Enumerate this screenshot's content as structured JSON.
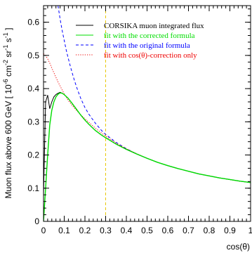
{
  "chart_data": {
    "type": "line",
    "xlabel": "cos(θ)",
    "ylabel_main": "Muon flux above 600 GeV [ 10",
    "ylabel_units": [
      {
        "t": "-6",
        "sup": true
      },
      {
        "t": " cm",
        "sup": false
      },
      {
        "t": "-2",
        "sup": true
      },
      {
        "t": " sr",
        "sup": false
      },
      {
        "t": "-1",
        "sup": true
      },
      {
        "t": " s",
        "sup": false
      },
      {
        "t": "-1",
        "sup": true
      },
      {
        "t": " ]",
        "sup": false
      }
    ],
    "xlim": [
      0,
      1
    ],
    "ylim": [
      0,
      0.65
    ],
    "xticks": [
      0,
      0.1,
      0.2,
      0.3,
      0.4,
      0.5,
      0.6,
      0.7,
      0.8,
      0.9,
      1
    ],
    "xtick_labels": [
      "0",
      "0.1",
      "0.2",
      "0.3",
      "0.4",
      "0.5",
      "0.6",
      "0.7",
      "0.8",
      "0.9",
      "1"
    ],
    "yticks": [
      0,
      0.1,
      0.2,
      0.3,
      0.4,
      0.5,
      0.6
    ],
    "ytick_labels": [
      "0",
      "0.1",
      "0.2",
      "0.3",
      "0.4",
      "0.5",
      "0.6"
    ],
    "vline_x": 0.3,
    "legend_position": "top-right",
    "series": [
      {
        "name": "CORSIKA muon integrated flux",
        "color": "#000000",
        "style": "solid",
        "x": [
          0.0,
          0.01,
          0.02,
          0.03,
          0.04,
          0.05,
          0.06,
          0.07,
          0.08,
          0.09,
          0.1,
          0.12,
          0.14,
          0.16,
          0.18,
          0.2,
          0.22,
          0.25,
          0.28,
          0.3,
          0.35,
          0.4,
          0.45,
          0.5,
          0.55,
          0.6,
          0.65,
          0.7,
          0.75,
          0.8,
          0.85,
          0.9,
          0.95,
          1.0
        ],
        "y": [
          0.08,
          0.36,
          0.38,
          0.34,
          0.36,
          0.375,
          0.382,
          0.386,
          0.389,
          0.386,
          0.382,
          0.37,
          0.354,
          0.337,
          0.32,
          0.305,
          0.292,
          0.274,
          0.26,
          0.252,
          0.233,
          0.217,
          0.203,
          0.19,
          0.178,
          0.168,
          0.159,
          0.151,
          0.143,
          0.137,
          0.131,
          0.126,
          0.121,
          0.117
        ]
      },
      {
        "name": "fit with the corrected formula",
        "color": "#00dd00",
        "style": "solid",
        "x": [
          0.0,
          0.01,
          0.02,
          0.03,
          0.04,
          0.05,
          0.06,
          0.07,
          0.08,
          0.09,
          0.1,
          0.12,
          0.14,
          0.16,
          0.18,
          0.2,
          0.22,
          0.25,
          0.28,
          0.3,
          0.35,
          0.4,
          0.45,
          0.5,
          0.55,
          0.6,
          0.65,
          0.7,
          0.75,
          0.8,
          0.85,
          0.9,
          0.95,
          1.0
        ],
        "y": [
          0.0,
          0.1,
          0.2,
          0.29,
          0.335,
          0.36,
          0.375,
          0.383,
          0.387,
          0.386,
          0.382,
          0.37,
          0.354,
          0.337,
          0.32,
          0.305,
          0.292,
          0.274,
          0.26,
          0.252,
          0.233,
          0.217,
          0.203,
          0.19,
          0.178,
          0.168,
          0.159,
          0.151,
          0.143,
          0.137,
          0.131,
          0.126,
          0.121,
          0.117
        ]
      },
      {
        "name": "fit with the original formula",
        "color": "#0000ff",
        "style": "dashed",
        "x": [
          0.07,
          0.08,
          0.09,
          0.1,
          0.11,
          0.12,
          0.13,
          0.14,
          0.15,
          0.16,
          0.18,
          0.2,
          0.22,
          0.25,
          0.28,
          0.3,
          0.35,
          0.4,
          0.45,
          0.5,
          0.55,
          0.6,
          0.65,
          0.7,
          0.75,
          0.8,
          0.85,
          0.9,
          0.95,
          1.0
        ],
        "y": [
          0.65,
          0.61,
          0.575,
          0.545,
          0.515,
          0.49,
          0.466,
          0.444,
          0.423,
          0.404,
          0.37,
          0.343,
          0.322,
          0.296,
          0.274,
          0.262,
          0.238,
          0.219,
          0.203,
          0.19,
          0.178,
          0.168,
          0.159,
          0.151,
          0.143,
          0.137,
          0.131,
          0.126,
          0.121,
          0.117
        ]
      },
      {
        "name": "fit with cos(θ)-correction only",
        "color": "#ee0000",
        "style": "dotted",
        "x": [
          0.0,
          0.01,
          0.02,
          0.03,
          0.04,
          0.05,
          0.06,
          0.07,
          0.08,
          0.09,
          0.1,
          0.12,
          0.14,
          0.16,
          0.18,
          0.2,
          0.22,
          0.25,
          0.28,
          0.3,
          0.35,
          0.4,
          0.45,
          0.5,
          0.55,
          0.6,
          0.65,
          0.7,
          0.75,
          0.8,
          0.85,
          0.9,
          0.95,
          1.0
        ],
        "y": [
          0.505,
          0.5,
          0.49,
          0.477,
          0.462,
          0.448,
          0.434,
          0.42,
          0.408,
          0.396,
          0.384,
          0.364,
          0.348,
          0.334,
          0.321,
          0.309,
          0.298,
          0.281,
          0.266,
          0.257,
          0.236,
          0.219,
          0.204,
          0.19,
          0.178,
          0.168,
          0.159,
          0.151,
          0.143,
          0.137,
          0.131,
          0.126,
          0.121,
          0.117
        ]
      }
    ]
  }
}
